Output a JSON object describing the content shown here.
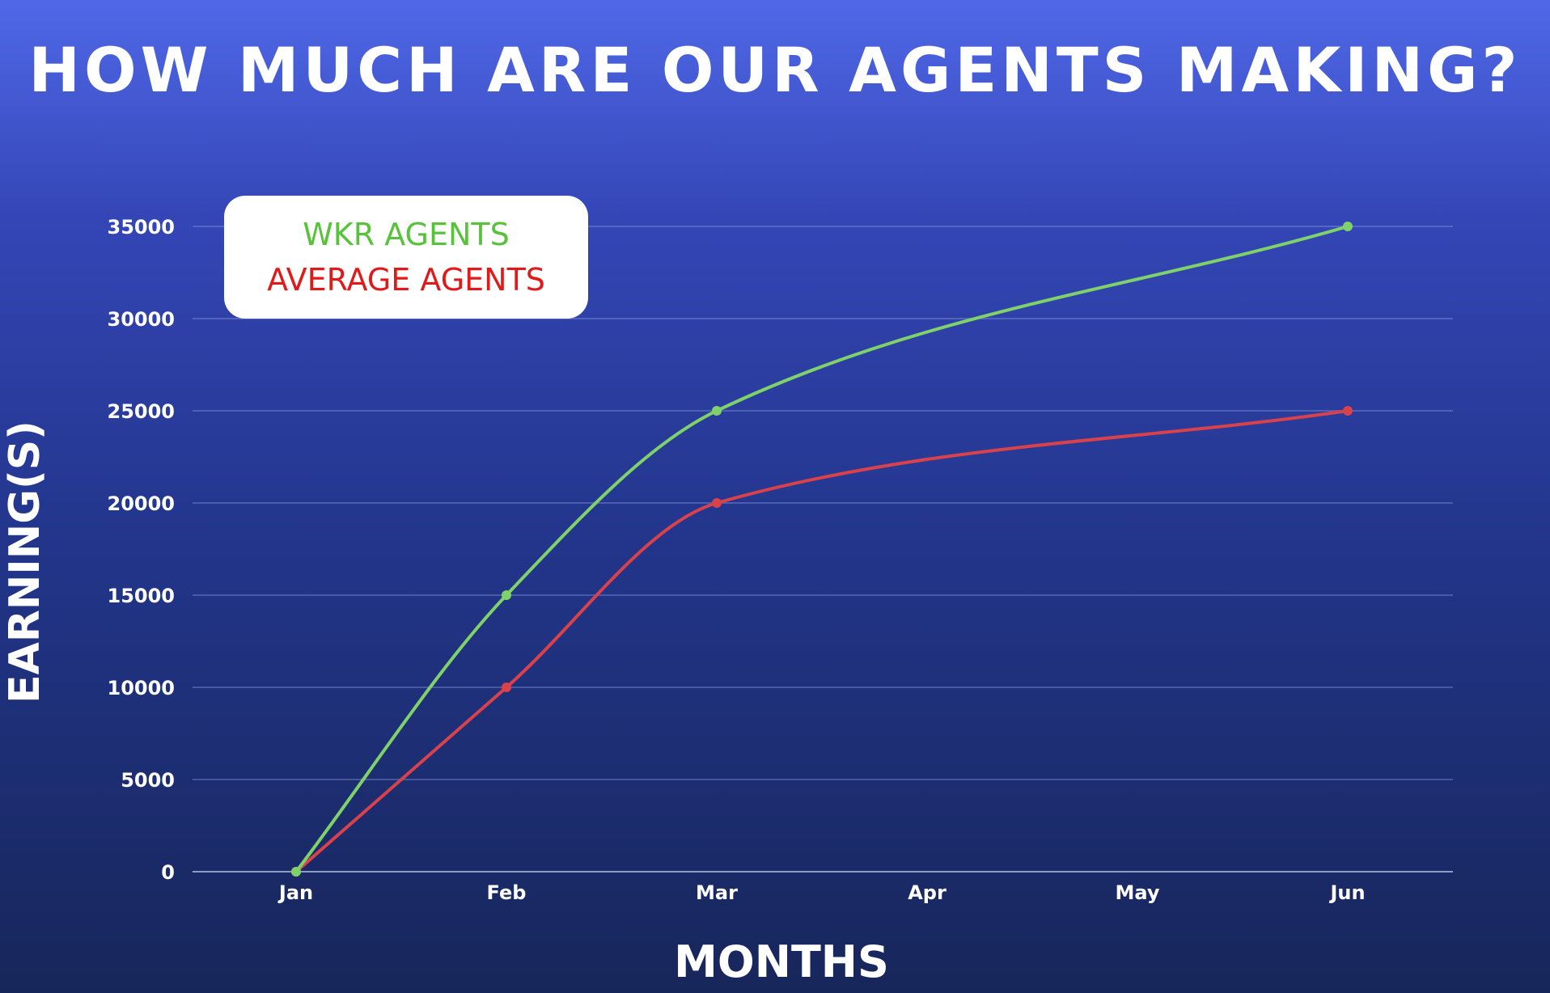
{
  "chart_data": {
    "type": "line",
    "title": "HOW MUCH ARE OUR AGENTS MAKING?",
    "xlabel": "MONTHS",
    "ylabel": "EARNING(S)",
    "categories": [
      "Jan",
      "Feb",
      "Mar",
      "Apr",
      "May",
      "Jun"
    ],
    "series": [
      {
        "name": "WKR AGENTS",
        "color": "#7fd16a",
        "values": [
          0,
          15000,
          25000,
          null,
          null,
          35000
        ]
      },
      {
        "name": "AVERAGE AGENTS",
        "color": "#d9424a",
        "values": [
          0,
          10000,
          20000,
          null,
          null,
          25000
        ]
      }
    ],
    "ylim": [
      0,
      35000
    ],
    "yticks": [
      0,
      5000,
      10000,
      15000,
      20000,
      25000,
      30000,
      35000
    ],
    "grid": true,
    "legend_position": "top-left",
    "legend_text_colors": [
      "#58c23c",
      "#e01a1a"
    ]
  }
}
